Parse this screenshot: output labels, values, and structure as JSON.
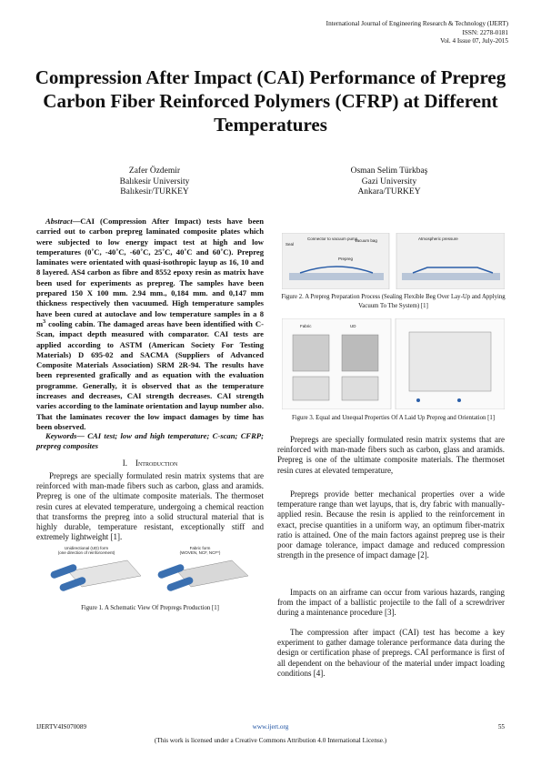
{
  "header": {
    "journal": "International Journal of Engineering Research & Technology (IJERT)",
    "issn": "ISSN: 2278-0181",
    "issue": "Vol. 4 Issue 07, July-2015"
  },
  "title": "Compression After Impact (CAI) Performance of Prepreg Carbon Fiber Reinforced Polymers (CFRP) at Different Temperatures",
  "authors": [
    {
      "name": "Zafer Özdemir",
      "affiliation": "Balıkesir University",
      "location": "Balıkesir/TURKEY"
    },
    {
      "name": "Osman Selim Türkbaş",
      "affiliation": "Gazi University",
      "location": "Ankara/TURKEY"
    }
  ],
  "abstract": {
    "label": "Abstract—",
    "parts": [
      "CAI (Compression After Impact) tests have been carried out to carbon prepreg laminated composite plates which were subjected to low energy impact test at high and low temperatures (0˚C, -40˚C, -60˚C, 25˚C, 40˚C and 60˚C). Prepreg laminates were orientated with quasi-isothropic layup as 16, 10 and 8 layered. AS4 carbon as fibre and 8552 epoxy resin as matrix have been used for experiments as prepreg. The samples have been prepared 150 X 100 mm. 2.94 mm., 0,184 mm. and 0,147 mm thickness respectively then vacuumed. High temperature samples have been cured at autoclave and low temperature samples in a 8 m",
      "3",
      " cooling cabin. The damaged areas have been identified with C-Scan, impact depth measured with comparator. CAI tests are applied according to ASTM (American Society For Testing Materials) D 695-02 and SACMA (Suppliers of Advanced Composite Materials Association) SRM 2R-94. The results have been represented grafically and as equation with the evaluation programme. Generally, it is observed that as the temperature increases and decreases, CAI strength decreases. CAI strength varies according to the laminate orientation and layup number also. That the laminates recover the low impact damages by time has been observed."
    ]
  },
  "keywords": {
    "label": "Keywords—",
    "text": "CAI test; low and high temperature; C-scan; CFRP; prepreg composites"
  },
  "introduction": {
    "number": "I.",
    "heading": "Introduction",
    "paragraphs": [
      "Prepregs are specially formulated resin matrix systems that are reinforced with man-made fibers such as carbon, glass and aramids. Prepreg is one of the ultimate composite materials. The thermoset resin cures at elevated temperature, undergoing a chemical reaction that transforms the prepreg into a solid structural material that is highly durable, temperature resistant, exceptionally stiff and extremely lightweight [1]."
    ]
  },
  "figures": [
    {
      "caption": "Figure 1. A Schematic View Of Prepregs Production [1]",
      "labels": [
        "Unidirectional (UD) form",
        "(one direction of reinforcement)",
        "Fabric form",
        "(WOVEN, NCF, NCF*)"
      ]
    },
    {
      "caption": "Figure 2. A Prepreg Preparation Process (Sealing Flexible Beg Over Lay-Up and Applying Vacuum To The System) [1]",
      "labels": [
        "Seal",
        "Connector to vacuum pump",
        "Vacuum bag",
        "Prepreg",
        "Atmospheric pressure"
      ]
    },
    {
      "caption": "Figure 3. Equal and Unequal Properties Of A Laid Up Prepreg and Orientation [1]",
      "labels": [
        "Fabric",
        "UD"
      ]
    }
  ],
  "right_paragraphs": [
    "Prepregs are specially formulated resin matrix systems that are reinforced with man-made fibers such as carbon, glass and aramids. Prepreg is one of the ultimate composite materials. The thermoset resin cures at elevated temperature,",
    "Prepregs provide better mechanical properties over a wide temperature range than wet layups, that is, dry fabric with manually-applied resin. Because the resin is applied to the reinforcement in exact, precise quantities in a uniform way, an optimum fiber-matrix ratio is attained. One of the main factors against prepreg use is their poor damage tolerance, impact damage and reduced compression strength in the presence of impact damage [2].",
    "Impacts on an airframe can occur from various hazards, ranging from the impact of a ballistic projectile to the fall of a screwdriver during a maintenance procedure [3].",
    "The compression after impact (CAI) test has become a key experiment to gather damage tolerance performance data during the design or certification phase of prepregs. CAI performance is first of all dependent on the behaviour of the material under impact loading conditions [4]."
  ],
  "footer": {
    "id": "IJERTV4IS070089",
    "url": "www.ijert.org",
    "page": "55",
    "license": "(This work is licensed under a Creative Commons Attribution 4.0 International License.)"
  }
}
